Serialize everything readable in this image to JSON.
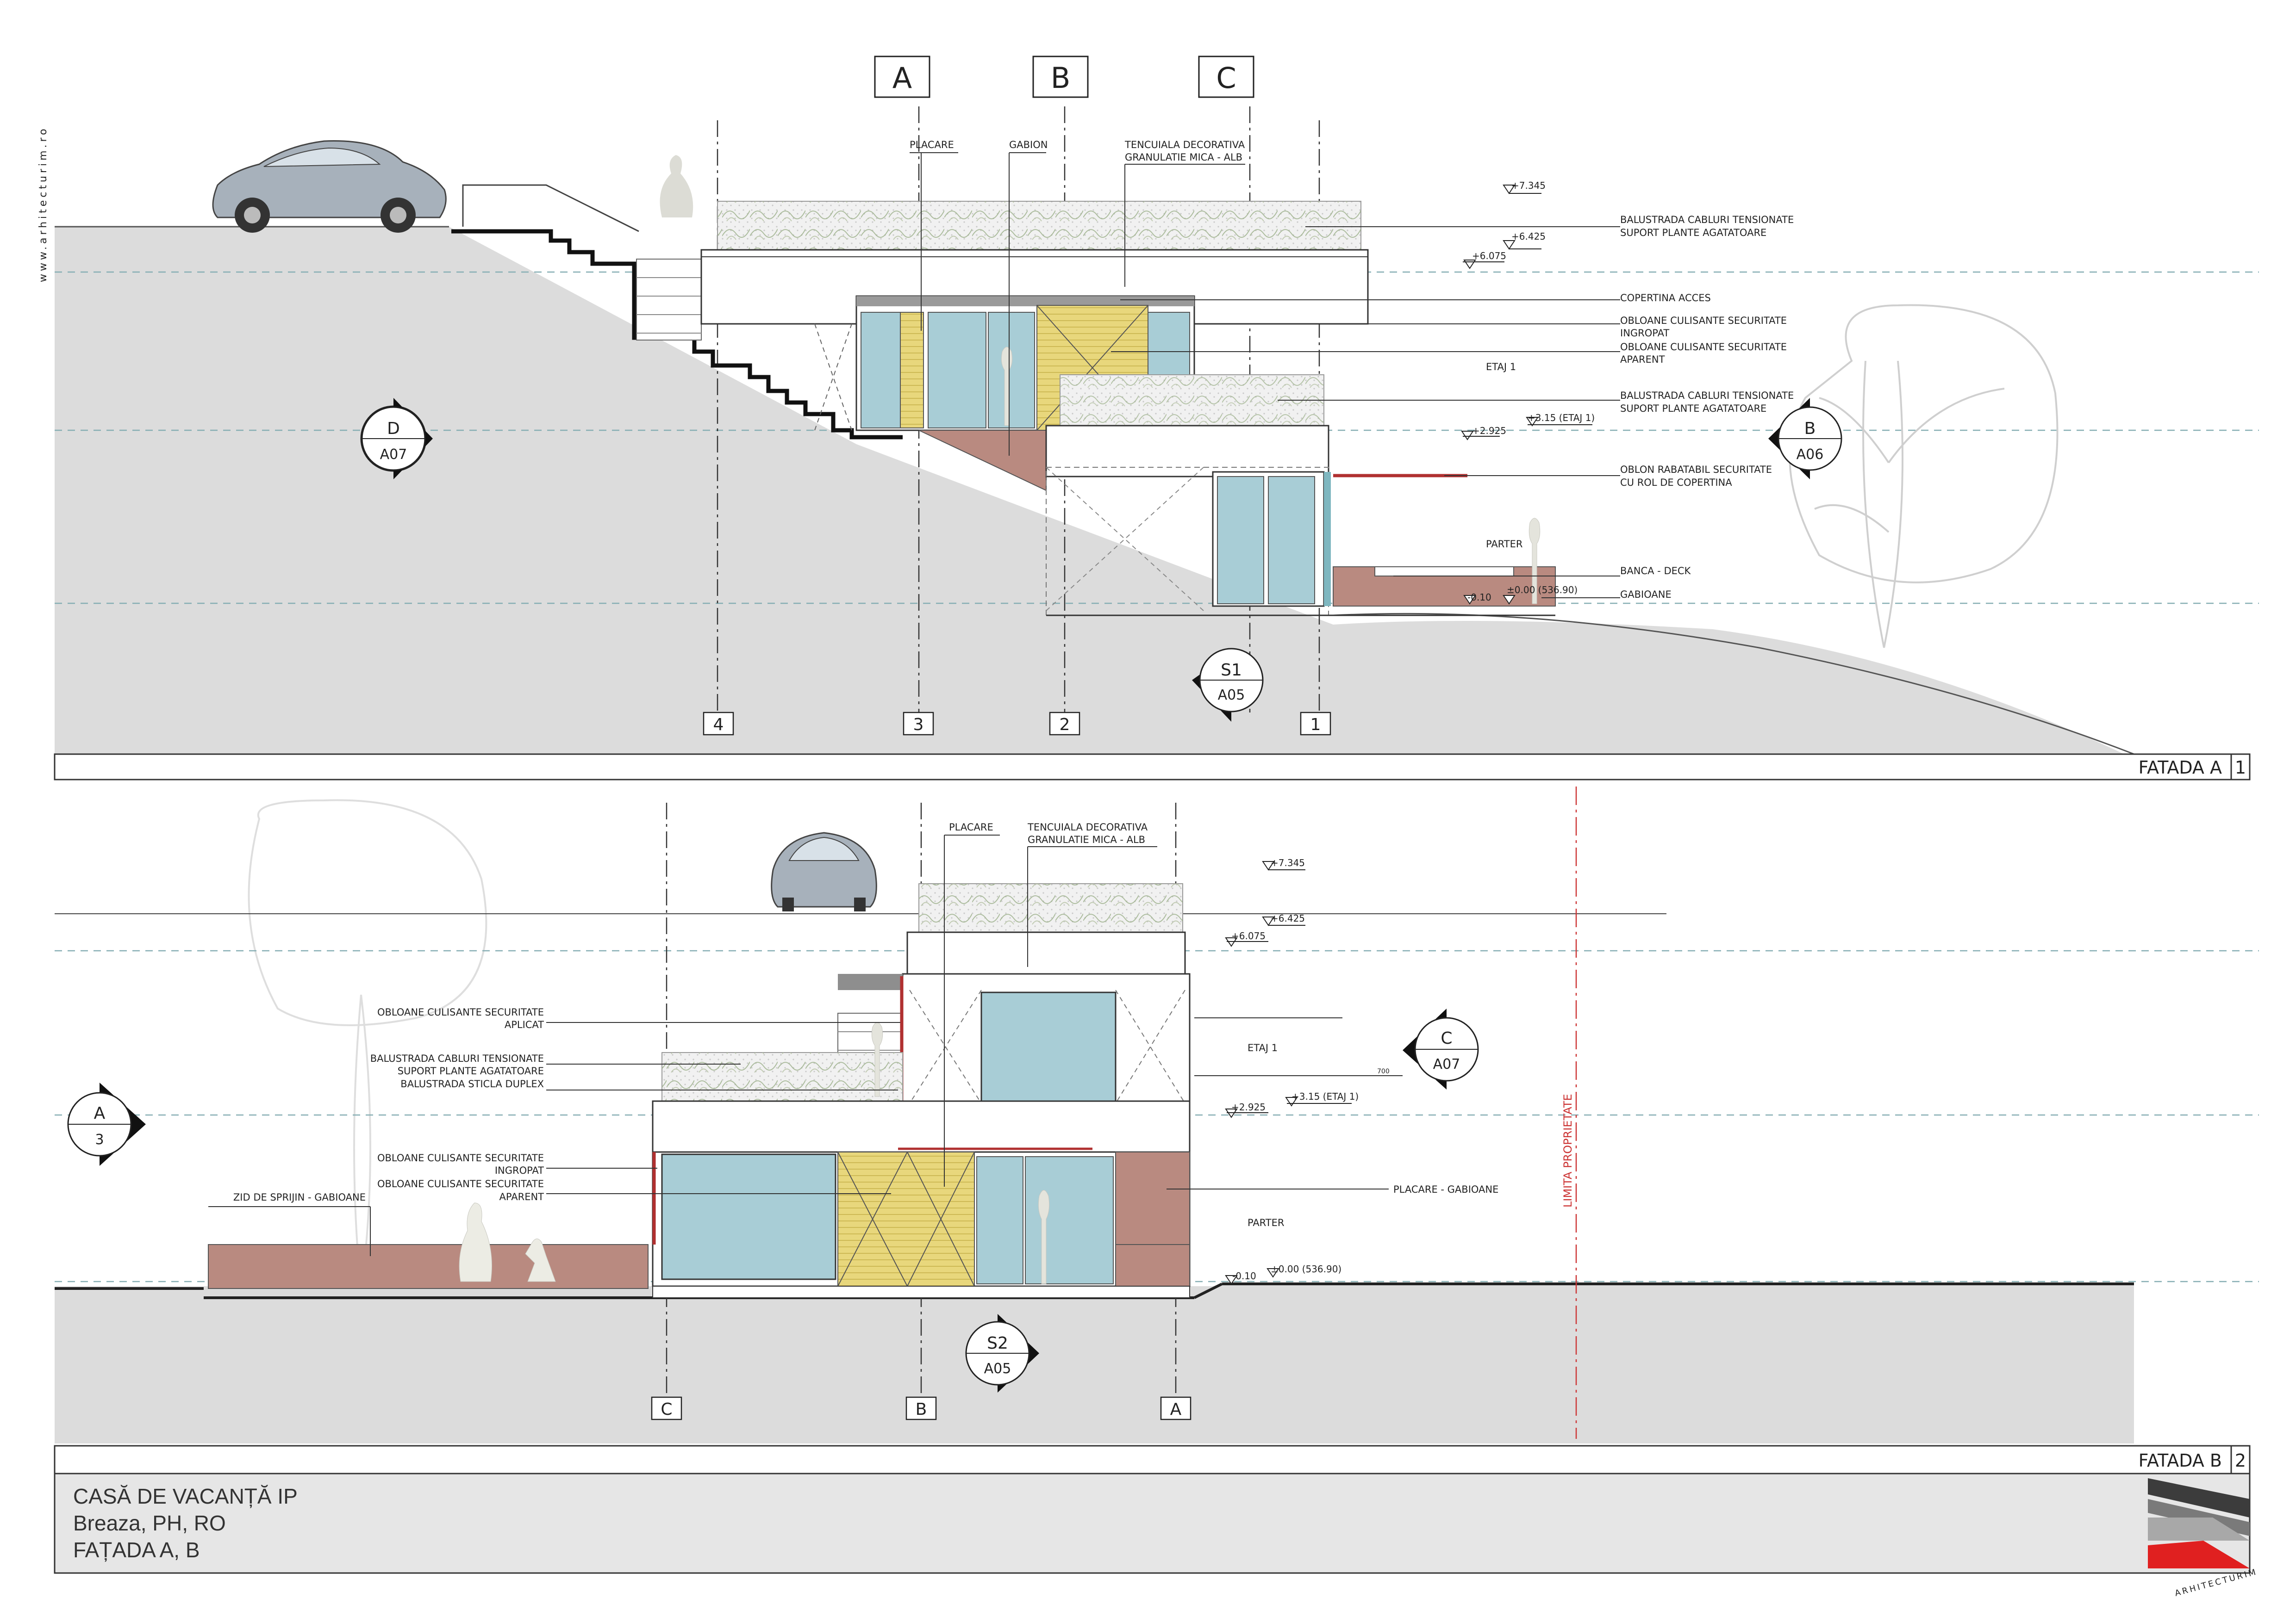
{
  "watermark": "www.arhitecturim.ro",
  "brand": "ARHITECTURIM",
  "title_block": {
    "line1": "CASĂ DE VACANȚĂ  IP",
    "line2": "Breaza, PH, RO",
    "line3": "FAȚADA A, B"
  },
  "elevation1": {
    "title": "FATADA A",
    "number": "1",
    "grid_letters": [
      "A",
      "B",
      "C"
    ],
    "grid_numbers": [
      "4",
      "3",
      "2",
      "1"
    ],
    "top_labels": {
      "placare": "PLACARE",
      "gabion": "GABION",
      "tencuiala1": "TENCUIALA DECORATIVA",
      "tencuiala2": "GRANULATIE MICA - ALB"
    },
    "levels": {
      "l1": "+7.345",
      "l2": "+6.425",
      "l3": "+6.075",
      "l4": "+2.925",
      "l5": "+3.15 (ETAJ 1)",
      "l6": "-0.10",
      "l7": "±0.00 (536.90)"
    },
    "right_labels": {
      "r1a": "BALUSTRADA CABLURI TENSIONATE",
      "r1b": "SUPORT PLANTE AGATATOARE",
      "r2": "COPERTINA ACCES",
      "r3a": "OBLOANE CULISANTE SECURITATE",
      "r3b": "INGROPAT",
      "r4a": "OBLOANE CULISANTE SECURITATE",
      "r4b": "APARENT",
      "r5a": "BALUSTRADA CABLURI TENSIONATE",
      "r5b": "SUPORT PLANTE AGATATOARE",
      "r6a": "OBLON RABATABIL SECURITATE",
      "r6b": "CU ROL DE COPERTINA",
      "r7": "BANCA - DECK",
      "r8": "GABIOANE"
    },
    "floors": {
      "etaj": "ETAJ 1",
      "parter": "PARTER"
    },
    "markers": {
      "d_top": "D",
      "d_bot": "A07",
      "b_top": "B",
      "b_bot": "A06",
      "s1_top": "S1",
      "s1_bot": "A05"
    }
  },
  "elevation2": {
    "title": "FATADA B",
    "number": "2",
    "grid_letters": [
      "C",
      "B",
      "A"
    ],
    "top_labels": {
      "placare": "PLACARE",
      "tencuiala1": "TENCUIALA DECORATIVA",
      "tencuiala2": "GRANULATIE MICA - ALB"
    },
    "levels": {
      "l1": "+7.345",
      "l2": "+6.425",
      "l3": "+6.075",
      "l4": "+2.925",
      "l5": "+3.15 (ETAJ 1)",
      "l6": "-0.10",
      "l7": "±0.00 (536.90)",
      "dim": "700"
    },
    "left_labels": {
      "a1": "OBLOANE CULISANTE SECURITATE",
      "a2": "APLICAT",
      "b1": "BALUSTRADA CABLURI TENSIONATE",
      "b2": "SUPORT PLANTE AGATATOARE",
      "b3": "BALUSTRADA STICLA DUPLEX",
      "c1": "OBLOANE CULISANTE SECURITATE",
      "c2": "INGROPAT",
      "c3": "OBLOANE CULISANTE SECURITATE",
      "c4": "APARENT",
      "zid": "ZID DE SPRIJIN - GABIOANE"
    },
    "right_labels": {
      "placare_gab": "PLACARE - GABIOANE",
      "limita": "LIMITA PROPRIETATE"
    },
    "floors": {
      "etaj": "ETAJ 1",
      "parter": "PARTER"
    },
    "markers": {
      "a_top": "A",
      "a_bot": "3",
      "c_top": "C",
      "c_bot": "A07",
      "s2_top": "S2",
      "s2_bot": "A05"
    }
  },
  "colors": {
    "ground": "#dcdcdc",
    "glass": "#a8cdd6",
    "gabion": "#b98a80",
    "yellow": "#e8d77c",
    "red": "#b03030",
    "dash": "#86aeb3"
  }
}
